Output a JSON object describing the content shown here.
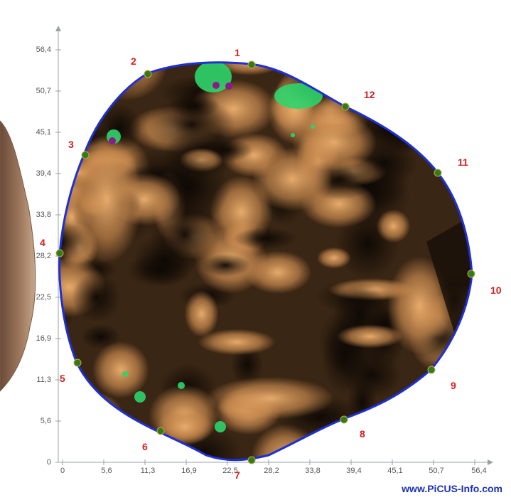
{
  "y_ticks": [
    "56,4",
    "50,7",
    "45,1",
    "39,4",
    "33,8",
    "28,2",
    "22,5",
    "16,9",
    "11,3",
    "5,6",
    "0"
  ],
  "x_ticks": [
    "0",
    "5,6",
    "11,3",
    "16,9",
    "22,5",
    "28,2",
    "33,8",
    "39,4",
    "45,1",
    "50,7",
    "56,4"
  ],
  "sensors": [
    "1",
    "2",
    "3",
    "4",
    "5",
    "6",
    "7",
    "8",
    "9",
    "10",
    "11",
    "12"
  ],
  "watermark": "www.PiCUS-Info.com",
  "colors": {
    "outline": "#1e2fd6",
    "sensor_dot": "#2f7d19",
    "label": "#d42020",
    "sound_dark": "#1a1108",
    "sound_light": "#e0a263",
    "green_zone": "#2fd46b",
    "violet_spot": "#8b1a8a"
  }
}
